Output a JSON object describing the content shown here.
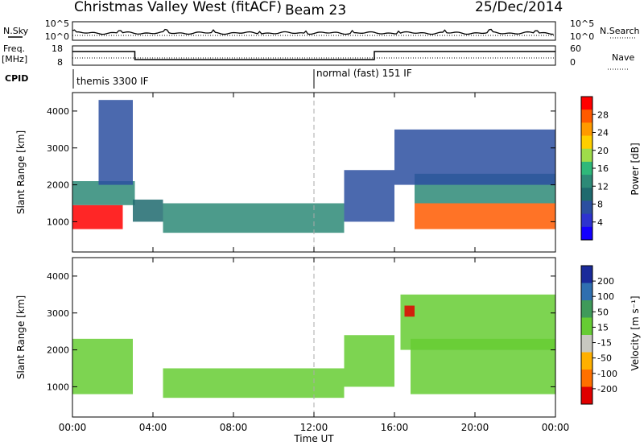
{
  "header": {
    "title": "Christmas Valley West (fitACF)",
    "beam": "Beam 23",
    "date": "25/Dec/2014"
  },
  "top_panels": {
    "nsky_label": "N.Sky",
    "nsky_ticks": [
      "10^5",
      "10^0"
    ],
    "nsearch_label": "N.Search",
    "freq_label": "Freq.",
    "freq_unit": "[MHz]",
    "freq_ticks": [
      "18",
      "8"
    ],
    "nave_label": "Nave",
    "nave_ticks": [
      "60",
      "0"
    ],
    "cpid_label": "CPID",
    "cpid_segments": [
      "themis 3300 IF",
      "normal (fast) 151 IF"
    ]
  },
  "axes": {
    "ylabel": "Slant Range [km]",
    "xlabel": "Time UT",
    "yticks": [
      "4000",
      "3000",
      "2000",
      "1000"
    ],
    "xticks": [
      "00:00",
      "04:00",
      "08:00",
      "12:00",
      "16:00",
      "20:00",
      "00:00"
    ]
  },
  "power_colorbar": {
    "label": "Power [dB]",
    "ticks": [
      "28",
      "24",
      "20",
      "16",
      "12",
      "8",
      "4"
    ],
    "colors": [
      "#ff0000",
      "#ff5a00",
      "#ff9a00",
      "#ffcf00",
      "#9fdc4a",
      "#2fb87a",
      "#2d8a77",
      "#1f6a6e",
      "#2b4fa0",
      "#2e33cf",
      "#1400ff"
    ]
  },
  "velocity_colorbar": {
    "label": "Velocity [m s⁻¹]",
    "ticks": [
      "200",
      "100",
      "50",
      "15",
      "-15",
      "-50",
      "-100",
      "-200"
    ],
    "colors": [
      "#1a2a9a",
      "#2f6fb0",
      "#3f9a5a",
      "#66cc33",
      "#c8c8c0",
      "#ffb000",
      "#ff7000",
      "#e00000"
    ]
  },
  "chart_data": {
    "type": "heatmap",
    "xlabel": "Time UT",
    "ylabel": "Slant Range [km]",
    "xlim": [
      0,
      24
    ],
    "ylim": [
      180,
      4500
    ],
    "yticks": [
      1000,
      2000,
      3000,
      4000
    ],
    "xticks": [
      0,
      4,
      8,
      12,
      16,
      20,
      24
    ],
    "series": [
      {
        "name": "Power [dB]",
        "clim": [
          0,
          32
        ],
        "regions": [
          {
            "t": [
              0.0,
              2.5
            ],
            "range": [
              800,
              1450
            ],
            "value": 30
          },
          {
            "t": [
              0.0,
              3.1
            ],
            "range": [
              1450,
              2100
            ],
            "value": 14
          },
          {
            "t": [
              1.3,
              3.0
            ],
            "range": [
              2000,
              4300
            ],
            "value": 8
          },
          {
            "t": [
              3.0,
              4.5
            ],
            "range": [
              1000,
              1600
            ],
            "value": 10
          },
          {
            "t": [
              4.5,
              13.5
            ],
            "range": [
              700,
              1500
            ],
            "value": 12
          },
          {
            "t": [
              13.5,
              16.0
            ],
            "range": [
              1000,
              2400
            ],
            "value": 8
          },
          {
            "t": [
              17.0,
              24.0
            ],
            "range": [
              800,
              1500
            ],
            "value": 29
          },
          {
            "t": [
              17.0,
              24.0
            ],
            "range": [
              1500,
              2300
            ],
            "value": 14
          },
          {
            "t": [
              16.0,
              24.0
            ],
            "range": [
              2000,
              3500
            ],
            "value": 6
          }
        ]
      },
      {
        "name": "Velocity [m s-1]",
        "clim": [
          -200,
          200
        ],
        "regions": [
          {
            "t": [
              0.0,
              3.0
            ],
            "range": [
              800,
              2300
            ],
            "value": 0
          },
          {
            "t": [
              4.5,
              13.5
            ],
            "range": [
              700,
              1500
            ],
            "value": 0
          },
          {
            "t": [
              13.5,
              16.0
            ],
            "range": [
              1000,
              2400
            ],
            "value": 40
          },
          {
            "t": [
              16.8,
              24.0
            ],
            "range": [
              800,
              2300
            ],
            "value": 0
          },
          {
            "t": [
              16.3,
              24.0
            ],
            "range": [
              2000,
              3500
            ],
            "value": 30
          },
          {
            "t": [
              16.5,
              17.0
            ],
            "range": [
              2900,
              3200
            ],
            "value": -180
          }
        ]
      }
    ]
  }
}
